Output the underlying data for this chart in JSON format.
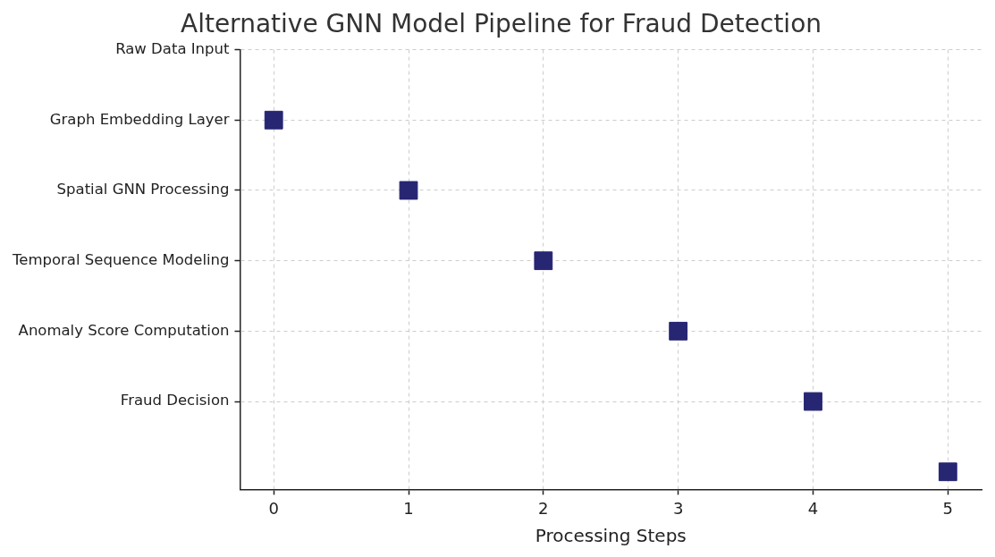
{
  "chart_data": {
    "type": "scatter",
    "title": "Alternative GNN Model Pipeline for Fraud Detection",
    "xlabel": "Processing Steps",
    "orientation": "horizontal",
    "categories": [
      "Raw Data Input",
      "Graph Embedding Layer",
      "Spatial GNN Processing",
      "Temporal Sequence Modeling",
      "Anomaly Score Computation",
      "Fraud Decision",
      null
    ],
    "values": [
      null,
      0,
      1,
      2,
      3,
      4,
      5
    ],
    "color": "#262673",
    "marker": "square",
    "grid": true,
    "xlim": [
      -0.25,
      5.25
    ],
    "xticks": [
      0,
      1,
      2,
      3,
      4,
      5
    ]
  }
}
